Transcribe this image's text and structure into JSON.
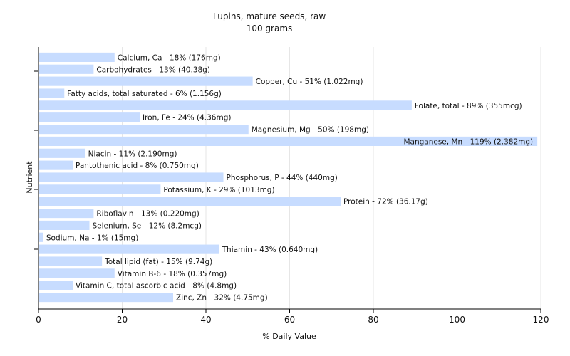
{
  "chart_data": {
    "type": "bar",
    "orientation": "horizontal",
    "title": "Lupins, mature seeds, raw",
    "subtitle": "100 grams",
    "xlabel": "% Daily Value",
    "ylabel": "Nutrient",
    "xlim": [
      0,
      120
    ],
    "xticks": [
      "0",
      "20",
      "40",
      "60",
      "80",
      "100",
      "120"
    ],
    "grid": "vertical",
    "bar_color": "#c7dcff",
    "categories": [
      "Calcium, Ca",
      "Carbohydrates",
      "Copper, Cu",
      "Fatty acids, total saturated",
      "Folate, total",
      "Iron, Fe",
      "Magnesium, Mg",
      "Manganese, Mn",
      "Niacin",
      "Pantothenic acid",
      "Phosphorus, P",
      "Potassium, K",
      "Protein",
      "Riboflavin",
      "Selenium, Se",
      "Sodium, Na",
      "Thiamin",
      "Total lipid (fat)",
      "Vitamin B-6",
      "Vitamin C, total ascorbic acid",
      "Zinc, Zn"
    ],
    "values": [
      18,
      13,
      51,
      6,
      89,
      24,
      50,
      119,
      11,
      8,
      44,
      29,
      72,
      13,
      12,
      1,
      43,
      15,
      18,
      8,
      32
    ],
    "labels": [
      "Calcium, Ca - 18% (176mg)",
      "Carbohydrates - 13% (40.38g)",
      "Copper, Cu - 51% (1.022mg)",
      "Fatty acids, total saturated - 6% (1.156g)",
      "Folate, total - 89% (355mcg)",
      "Iron, Fe - 24% (4.36mg)",
      "Magnesium, Mg - 50% (198mg)",
      "Manganese, Mn - 119% (2.382mg)",
      "Niacin - 11% (2.190mg)",
      "Pantothenic acid - 8% (0.750mg)",
      "Phosphorus, P - 44% (440mg)",
      "Potassium, K - 29% (1013mg)",
      "Protein - 72% (36.17g)",
      "Riboflavin - 13% (0.220mg)",
      "Selenium, Se - 12% (8.2mcg)",
      "Sodium, Na - 1% (15mg)",
      "Thiamin - 43% (0.640mg)",
      "Total lipid (fat) - 15% (9.74g)",
      "Vitamin B-6 - 18% (0.357mg)",
      "Vitamin C, total ascorbic acid - 8% (4.8mg)",
      "Zinc, Zn - 32% (4.75mg)"
    ]
  }
}
